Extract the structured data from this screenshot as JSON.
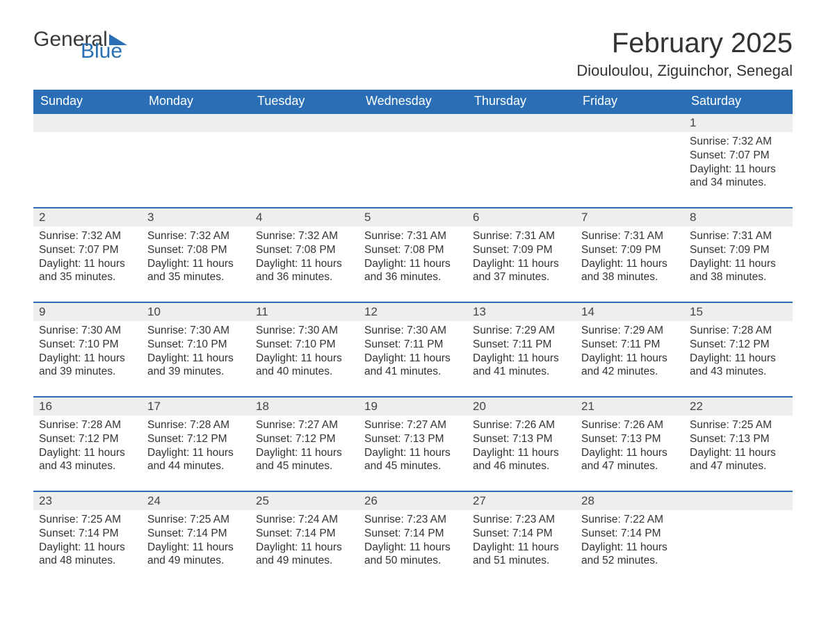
{
  "branding": {
    "logo_text_a": "General",
    "logo_text_b": "Blue",
    "logo_color_a": "#3a3a3a",
    "logo_color_b": "#2a6fb5"
  },
  "header": {
    "month_title": "February 2025",
    "location": "Diouloulou, Ziguinchor, Senegal"
  },
  "styling": {
    "header_bg": "#2a6fb5",
    "header_fg": "#ffffff",
    "day_divider": "#2a6fb5",
    "daynum_bg": "#eeeeee",
    "body_bg": "#ffffff",
    "text_color": "#333333",
    "font_family": "Segoe UI, Arial, sans-serif",
    "month_title_fontsize_pt": 30,
    "location_fontsize_pt": 16,
    "weekday_fontsize_pt": 13,
    "daynum_fontsize_pt": 13,
    "body_fontsize_pt": 11
  },
  "calendar": {
    "weekdays": [
      "Sunday",
      "Monday",
      "Tuesday",
      "Wednesday",
      "Thursday",
      "Friday",
      "Saturday"
    ],
    "weeks": [
      [
        null,
        null,
        null,
        null,
        null,
        null,
        {
          "n": "1",
          "sunrise": "Sunrise: 7:32 AM",
          "sunset": "Sunset: 7:07 PM",
          "day_a": "Daylight: 11 hours",
          "day_b": "and 34 minutes."
        }
      ],
      [
        {
          "n": "2",
          "sunrise": "Sunrise: 7:32 AM",
          "sunset": "Sunset: 7:07 PM",
          "day_a": "Daylight: 11 hours",
          "day_b": "and 35 minutes."
        },
        {
          "n": "3",
          "sunrise": "Sunrise: 7:32 AM",
          "sunset": "Sunset: 7:08 PM",
          "day_a": "Daylight: 11 hours",
          "day_b": "and 35 minutes."
        },
        {
          "n": "4",
          "sunrise": "Sunrise: 7:32 AM",
          "sunset": "Sunset: 7:08 PM",
          "day_a": "Daylight: 11 hours",
          "day_b": "and 36 minutes."
        },
        {
          "n": "5",
          "sunrise": "Sunrise: 7:31 AM",
          "sunset": "Sunset: 7:08 PM",
          "day_a": "Daylight: 11 hours",
          "day_b": "and 36 minutes."
        },
        {
          "n": "6",
          "sunrise": "Sunrise: 7:31 AM",
          "sunset": "Sunset: 7:09 PM",
          "day_a": "Daylight: 11 hours",
          "day_b": "and 37 minutes."
        },
        {
          "n": "7",
          "sunrise": "Sunrise: 7:31 AM",
          "sunset": "Sunset: 7:09 PM",
          "day_a": "Daylight: 11 hours",
          "day_b": "and 38 minutes."
        },
        {
          "n": "8",
          "sunrise": "Sunrise: 7:31 AM",
          "sunset": "Sunset: 7:09 PM",
          "day_a": "Daylight: 11 hours",
          "day_b": "and 38 minutes."
        }
      ],
      [
        {
          "n": "9",
          "sunrise": "Sunrise: 7:30 AM",
          "sunset": "Sunset: 7:10 PM",
          "day_a": "Daylight: 11 hours",
          "day_b": "and 39 minutes."
        },
        {
          "n": "10",
          "sunrise": "Sunrise: 7:30 AM",
          "sunset": "Sunset: 7:10 PM",
          "day_a": "Daylight: 11 hours",
          "day_b": "and 39 minutes."
        },
        {
          "n": "11",
          "sunrise": "Sunrise: 7:30 AM",
          "sunset": "Sunset: 7:10 PM",
          "day_a": "Daylight: 11 hours",
          "day_b": "and 40 minutes."
        },
        {
          "n": "12",
          "sunrise": "Sunrise: 7:30 AM",
          "sunset": "Sunset: 7:11 PM",
          "day_a": "Daylight: 11 hours",
          "day_b": "and 41 minutes."
        },
        {
          "n": "13",
          "sunrise": "Sunrise: 7:29 AM",
          "sunset": "Sunset: 7:11 PM",
          "day_a": "Daylight: 11 hours",
          "day_b": "and 41 minutes."
        },
        {
          "n": "14",
          "sunrise": "Sunrise: 7:29 AM",
          "sunset": "Sunset: 7:11 PM",
          "day_a": "Daylight: 11 hours",
          "day_b": "and 42 minutes."
        },
        {
          "n": "15",
          "sunrise": "Sunrise: 7:28 AM",
          "sunset": "Sunset: 7:12 PM",
          "day_a": "Daylight: 11 hours",
          "day_b": "and 43 minutes."
        }
      ],
      [
        {
          "n": "16",
          "sunrise": "Sunrise: 7:28 AM",
          "sunset": "Sunset: 7:12 PM",
          "day_a": "Daylight: 11 hours",
          "day_b": "and 43 minutes."
        },
        {
          "n": "17",
          "sunrise": "Sunrise: 7:28 AM",
          "sunset": "Sunset: 7:12 PM",
          "day_a": "Daylight: 11 hours",
          "day_b": "and 44 minutes."
        },
        {
          "n": "18",
          "sunrise": "Sunrise: 7:27 AM",
          "sunset": "Sunset: 7:12 PM",
          "day_a": "Daylight: 11 hours",
          "day_b": "and 45 minutes."
        },
        {
          "n": "19",
          "sunrise": "Sunrise: 7:27 AM",
          "sunset": "Sunset: 7:13 PM",
          "day_a": "Daylight: 11 hours",
          "day_b": "and 45 minutes."
        },
        {
          "n": "20",
          "sunrise": "Sunrise: 7:26 AM",
          "sunset": "Sunset: 7:13 PM",
          "day_a": "Daylight: 11 hours",
          "day_b": "and 46 minutes."
        },
        {
          "n": "21",
          "sunrise": "Sunrise: 7:26 AM",
          "sunset": "Sunset: 7:13 PM",
          "day_a": "Daylight: 11 hours",
          "day_b": "and 47 minutes."
        },
        {
          "n": "22",
          "sunrise": "Sunrise: 7:25 AM",
          "sunset": "Sunset: 7:13 PM",
          "day_a": "Daylight: 11 hours",
          "day_b": "and 47 minutes."
        }
      ],
      [
        {
          "n": "23",
          "sunrise": "Sunrise: 7:25 AM",
          "sunset": "Sunset: 7:14 PM",
          "day_a": "Daylight: 11 hours",
          "day_b": "and 48 minutes."
        },
        {
          "n": "24",
          "sunrise": "Sunrise: 7:25 AM",
          "sunset": "Sunset: 7:14 PM",
          "day_a": "Daylight: 11 hours",
          "day_b": "and 49 minutes."
        },
        {
          "n": "25",
          "sunrise": "Sunrise: 7:24 AM",
          "sunset": "Sunset: 7:14 PM",
          "day_a": "Daylight: 11 hours",
          "day_b": "and 49 minutes."
        },
        {
          "n": "26",
          "sunrise": "Sunrise: 7:23 AM",
          "sunset": "Sunset: 7:14 PM",
          "day_a": "Daylight: 11 hours",
          "day_b": "and 50 minutes."
        },
        {
          "n": "27",
          "sunrise": "Sunrise: 7:23 AM",
          "sunset": "Sunset: 7:14 PM",
          "day_a": "Daylight: 11 hours",
          "day_b": "and 51 minutes."
        },
        {
          "n": "28",
          "sunrise": "Sunrise: 7:22 AM",
          "sunset": "Sunset: 7:14 PM",
          "day_a": "Daylight: 11 hours",
          "day_b": "and 52 minutes."
        },
        null
      ]
    ]
  }
}
